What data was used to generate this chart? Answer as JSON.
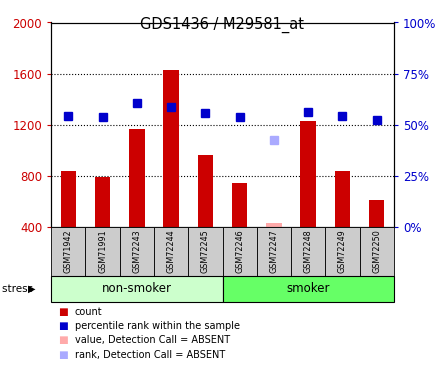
{
  "title": "GDS1436 / M29581_at",
  "samples": [
    "GSM71942",
    "GSM71991",
    "GSM72243",
    "GSM72244",
    "GSM72245",
    "GSM72246",
    "GSM72247",
    "GSM72248",
    "GSM72249",
    "GSM72250"
  ],
  "counts": [
    840,
    790,
    1170,
    1630,
    960,
    740,
    null,
    1230,
    840,
    610
  ],
  "counts_absent": [
    null,
    null,
    null,
    null,
    null,
    null,
    430,
    null,
    null,
    null
  ],
  "ranks": [
    1270,
    1260,
    1370,
    1340,
    1290,
    1260,
    null,
    1300,
    1270,
    1240
  ],
  "ranks_absent": [
    null,
    null,
    null,
    null,
    null,
    null,
    1080,
    null,
    null,
    null
  ],
  "ylim_left": [
    400,
    2000
  ],
  "ylim_right": [
    0,
    100
  ],
  "yticks_left": [
    400,
    800,
    1200,
    1600,
    2000
  ],
  "yticks_right": [
    0,
    25,
    50,
    75,
    100
  ],
  "ytick_labels_right": [
    "0%",
    "25%",
    "50%",
    "75%",
    "100%"
  ],
  "nonsmoker_color": "#ccffcc",
  "smoker_color": "#66ff66",
  "bar_color": "#cc0000",
  "rank_color": "#0000cc",
  "absent_bar_color": "#ffaaaa",
  "absent_rank_color": "#aaaaff",
  "left_tick_color": "#cc0000",
  "right_tick_color": "#0000cc",
  "bar_width": 0.45,
  "rank_marker_size": 6,
  "legend_items": [
    "count",
    "percentile rank within the sample",
    "value, Detection Call = ABSENT",
    "rank, Detection Call = ABSENT"
  ],
  "legend_colors": [
    "#cc0000",
    "#0000cc",
    "#ffaaaa",
    "#aaaaff"
  ],
  "gray_box_color": "#cccccc",
  "group_nonsmoker_label": "non-smoker",
  "group_smoker_label": "smoker"
}
